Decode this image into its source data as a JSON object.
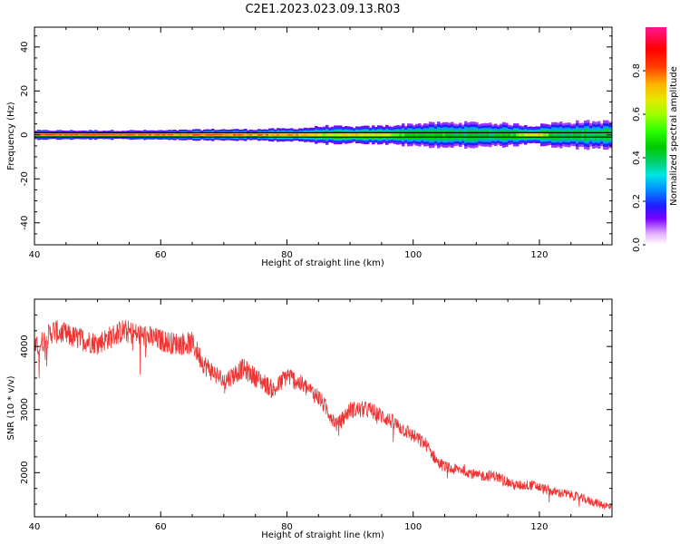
{
  "title": "C2E1.2023.023.09.13.R03",
  "chart_data": [
    {
      "type": "heatmap",
      "xlabel": "Height of straight line (km)",
      "ylabel": "Frequency (Hz)",
      "xlim": [
        40,
        131.5
      ],
      "ylim": [
        -50,
        49
      ],
      "x_ticks": [
        40,
        60,
        80,
        100,
        120
      ],
      "y_ticks": [
        -40,
        -20,
        0,
        20,
        40
      ],
      "grid": false,
      "colorbar": {
        "label": "Normalized spectral amplitude",
        "range": [
          0,
          1
        ],
        "ticks": [
          "0.0",
          "0.2",
          "0.4",
          "0.6",
          "0.8"
        ],
        "colormap": "gist_ncar"
      },
      "band": {
        "center_hz": 0,
        "profile": [
          {
            "x": 40,
            "amp": 0.85,
            "width_hz": 2.0
          },
          {
            "x": 50,
            "amp": 0.85,
            "width_hz": 2.0
          },
          {
            "x": 60,
            "amp": 0.82,
            "width_hz": 2.0
          },
          {
            "x": 68,
            "amp": 0.8,
            "width_hz": 2.5
          },
          {
            "x": 75,
            "amp": 0.8,
            "width_hz": 2.5
          },
          {
            "x": 82,
            "amp": 0.75,
            "width_hz": 3.0
          },
          {
            "x": 86,
            "amp": 0.6,
            "width_hz": 4.0
          },
          {
            "x": 90,
            "amp": 0.7,
            "width_hz": 3.5
          },
          {
            "x": 95,
            "amp": 0.65,
            "width_hz": 4.0
          },
          {
            "x": 100,
            "amp": 0.45,
            "width_hz": 5.0
          },
          {
            "x": 105,
            "amp": 0.45,
            "width_hz": 5.5
          },
          {
            "x": 110,
            "amp": 0.4,
            "width_hz": 5.5
          },
          {
            "x": 115,
            "amp": 0.45,
            "width_hz": 5.0
          },
          {
            "x": 119,
            "amp": 0.75,
            "width_hz": 4.0
          },
          {
            "x": 122,
            "amp": 0.45,
            "width_hz": 5.5
          },
          {
            "x": 127,
            "amp": 0.4,
            "width_hz": 6.0
          },
          {
            "x": 131.5,
            "amp": 0.4,
            "width_hz": 6.0
          }
        ]
      }
    },
    {
      "type": "line",
      "xlabel": "Height of straight line (km)",
      "ylabel": "SNR (10 * v/v)",
      "xlim": [
        40,
        131.5
      ],
      "ylim": [
        1300,
        4750
      ],
      "x_ticks": [
        40,
        60,
        80,
        100,
        120
      ],
      "y_ticks": [
        2000,
        3000,
        4000
      ],
      "grid": false,
      "series": [
        {
          "color": "#ee3333",
          "x": [
            40,
            43,
            46,
            50,
            54,
            58,
            62,
            65,
            67,
            70,
            73,
            76,
            78,
            80,
            83,
            85,
            87,
            88,
            90,
            93,
            96,
            99,
            102,
            104,
            106,
            108,
            110,
            113,
            116,
            119,
            122,
            125,
            128,
            131.5
          ],
          "y": [
            3950,
            4250,
            4150,
            4050,
            4250,
            4150,
            4050,
            4050,
            3700,
            3450,
            3650,
            3450,
            3300,
            3550,
            3350,
            3200,
            2900,
            2750,
            3000,
            3000,
            2850,
            2650,
            2450,
            2150,
            2050,
            2050,
            1950,
            1950,
            1800,
            1800,
            1700,
            1650,
            1550,
            1450
          ]
        }
      ]
    }
  ]
}
